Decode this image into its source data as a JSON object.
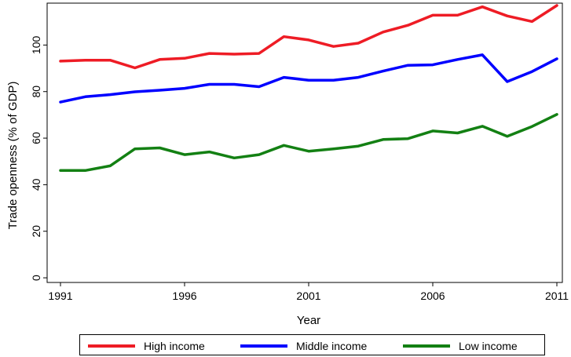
{
  "chart_data": {
    "type": "line",
    "xlabel": "Year",
    "ylabel": "Trade openness (% of GDP)",
    "xlim": [
      1991,
      2011
    ],
    "ylim": [
      -2,
      118
    ],
    "xticks": [
      1991,
      1996,
      2001,
      2006,
      2011
    ],
    "yticks": [
      0,
      20,
      40,
      60,
      80,
      100
    ],
    "grid": false,
    "legend_position": "bottom",
    "x": [
      1991,
      1992,
      1993,
      1994,
      1995,
      1996,
      1997,
      1998,
      1999,
      2000,
      2001,
      2002,
      2003,
      2004,
      2005,
      2006,
      2007,
      2008,
      2009,
      2010,
      2011
    ],
    "series": [
      {
        "name": "High income",
        "color": "#ee1c25",
        "values": [
          93.1,
          93.5,
          93.5,
          90.2,
          93.8,
          94.3,
          96.4,
          96.1,
          96.4,
          103.6,
          102.2,
          99.4,
          100.8,
          105.6,
          108.5,
          112.8,
          112.8,
          116.4,
          112.5,
          110.1,
          117.0
        ]
      },
      {
        "name": "Middle income",
        "color": "#0000ff",
        "values": [
          75.5,
          77.8,
          78.7,
          79.9,
          80.6,
          81.4,
          83.1,
          83.1,
          82.1,
          86.1,
          84.9,
          84.9,
          86.1,
          88.8,
          91.3,
          91.5,
          93.8,
          95.8,
          84.3,
          88.6,
          94.1
        ]
      },
      {
        "name": "Low income",
        "color": "#138013",
        "values": [
          46.1,
          46.1,
          48.1,
          55.4,
          55.8,
          52.9,
          54.1,
          51.5,
          52.9,
          56.9,
          54.4,
          55.4,
          56.6,
          59.4,
          59.8,
          63.1,
          62.2,
          65.1,
          60.8,
          65.0,
          70.2
        ]
      }
    ]
  }
}
